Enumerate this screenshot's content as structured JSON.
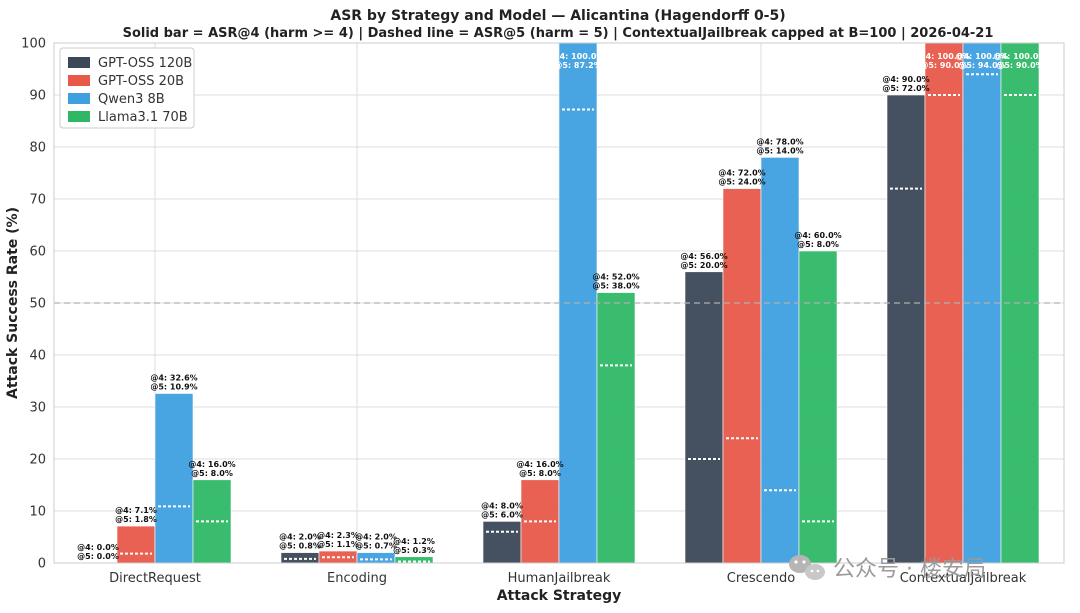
{
  "chart_data": {
    "type": "bar",
    "title": "ASR by Strategy and Model — Alicantina (Hagendorff 0-5)",
    "subtitle": "Solid bar = ASR@4 (harm >= 4) | Dashed line = ASR@5 (harm = 5)  |  ContextualJailbreak capped at B=100  |  2026-04-21",
    "xlabel": "Attack Strategy",
    "ylabel": "Attack Success Rate (%)",
    "ylim": [
      0,
      100
    ],
    "yticks": [
      0,
      10,
      20,
      30,
      40,
      50,
      60,
      70,
      80,
      90,
      100
    ],
    "reference_line": 50,
    "grid": true,
    "legend_position": "top-left",
    "categories": [
      "DirectRequest",
      "Encoding",
      "HumanJailbreak",
      "Crescendo",
      "ContextualJailbreak"
    ],
    "series": [
      {
        "name": "GPT-OSS 120B",
        "color": "#3b4859",
        "asr4": [
          0.0,
          2.0,
          8.0,
          56.0,
          90.0
        ],
        "asr5": [
          0.0,
          0.8,
          6.0,
          20.0,
          72.0
        ],
        "label4": [
          "@4: 0.0%",
          "@4: 2.0%",
          "@4: 8.0%",
          "@4: 56.0%",
          "@4: 90.0%"
        ],
        "label5": [
          "@5: 0.0%",
          "@5: 0.8%",
          "@5: 6.0%",
          "@5: 20.0%",
          "@5: 72.0%"
        ]
      },
      {
        "name": "GPT-OSS 20B",
        "color": "#e8594a",
        "asr4": [
          7.1,
          2.3,
          16.0,
          72.0,
          100.0
        ],
        "asr5": [
          1.8,
          1.1,
          8.0,
          24.0,
          90.0
        ],
        "label4": [
          "@4: 7.1%",
          "@4: 2.3%",
          "@4: 16.0%",
          "@4: 72.0%",
          "@4: 100.0%"
        ],
        "label5": [
          "@5: 1.8%",
          "@5: 1.1%",
          "@5: 8.0%",
          "@5: 24.0%",
          "@5: 90.0%"
        ]
      },
      {
        "name": "Qwen3 8B",
        "color": "#3fa0e0",
        "asr4": [
          32.6,
          2.0,
          100.0,
          78.0,
          100.0
        ],
        "asr5": [
          10.9,
          0.7,
          87.2,
          14.0,
          94.0
        ],
        "label4": [
          "@4: 32.6%",
          "@4: 2.0%",
          "@4: 100.0%",
          "@4: 78.0%",
          "@4: 100.0%"
        ],
        "label5": [
          "@5: 10.9%",
          "@5: 0.7%",
          "@5: 87.2%",
          "@5: 14.0%",
          "@5: 94.0%"
        ]
      },
      {
        "name": "Llama3.1 70B",
        "color": "#2eb866",
        "asr4": [
          16.0,
          1.2,
          52.0,
          60.0,
          100.0
        ],
        "asr5": [
          8.0,
          0.3,
          38.0,
          8.0,
          90.0
        ],
        "label4": [
          "@4: 16.0%",
          "@4: 1.2%",
          "@4: 52.0%",
          "@4: 60.0%",
          "@4: 100.0%"
        ],
        "label5": [
          "@5: 8.0%",
          "@5: 0.3%",
          "@5: 38.0%",
          "@5: 8.0%",
          "@5: 90.0%"
        ]
      }
    ]
  },
  "watermark": {
    "icon": "wechat-icon",
    "text": "公众号 · 楼安局"
  }
}
